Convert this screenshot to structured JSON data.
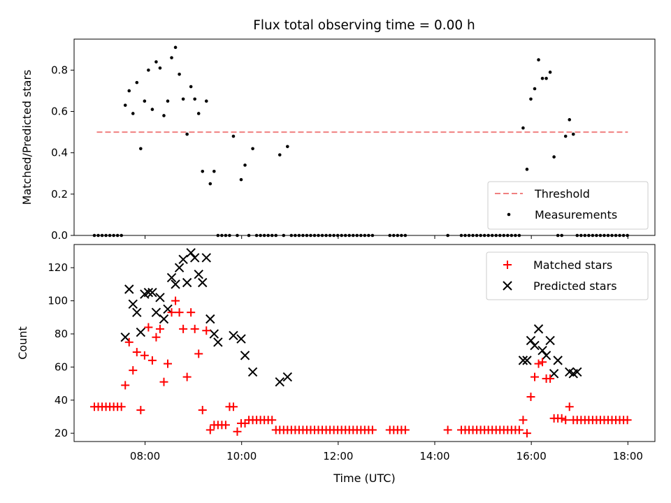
{
  "chart_data": [
    {
      "type": "scatter",
      "title": "Flux total observing time = 0.00 h",
      "xlabel": "",
      "ylabel": "Matched/Predicted stars",
      "xlim": [
        6.53,
        18.56
      ],
      "ylim": [
        0.0,
        0.95
      ],
      "x_tick_values": [
        8,
        10,
        12,
        14,
        16,
        18
      ],
      "y_ticks": [
        "0.0",
        "0.2",
        "0.4",
        "0.6",
        "0.8"
      ],
      "y_tick_values": [
        0.0,
        0.2,
        0.4,
        0.6,
        0.8
      ],
      "grid": false,
      "legend_position": "lower-right",
      "threshold": {
        "name": "Threshold",
        "value": 0.5,
        "x_range": [
          7.0,
          18.0
        ],
        "color": "#f08080"
      },
      "series": [
        {
          "name": "Measurements",
          "color": "#000000",
          "x": [
            6.95,
            7.03,
            7.11,
            7.19,
            7.27,
            7.35,
            7.43,
            7.51,
            7.59,
            7.67,
            7.75,
            7.83,
            7.91,
            7.99,
            8.07,
            8.15,
            8.23,
            8.31,
            8.39,
            8.47,
            8.55,
            8.63,
            8.71,
            8.79,
            8.87,
            8.95,
            9.03,
            9.11,
            9.19,
            9.27,
            9.35,
            9.43,
            9.51,
            9.59,
            9.67,
            9.75,
            9.83,
            9.91,
            9.99,
            10.07,
            10.15,
            10.23,
            10.31,
            10.39,
            10.47,
            10.55,
            10.63,
            10.71,
            10.79,
            10.87,
            10.95,
            11.03,
            11.11,
            11.19,
            11.27,
            11.35,
            11.43,
            11.51,
            11.59,
            11.67,
            11.75,
            11.83,
            11.91,
            11.99,
            12.07,
            12.15,
            12.23,
            12.31,
            12.39,
            12.47,
            12.55,
            12.63,
            12.71,
            13.07,
            13.15,
            13.23,
            13.31,
            13.39,
            14.27,
            14.55,
            14.63,
            14.71,
            14.79,
            14.87,
            14.95,
            15.03,
            15.11,
            15.19,
            15.27,
            15.35,
            15.43,
            15.51,
            15.59,
            15.67,
            15.75,
            15.83,
            15.91,
            15.99,
            16.07,
            16.15,
            16.23,
            16.31,
            16.39,
            16.47,
            16.55,
            16.63,
            16.71,
            16.79,
            16.87,
            16.95,
            17.03,
            17.11,
            17.19,
            17.27,
            17.35,
            17.43,
            17.51,
            17.59,
            17.67,
            17.75,
            17.83,
            17.91,
            17.99
          ],
          "y": [
            0.0,
            0.0,
            0.0,
            0.0,
            0.0,
            0.0,
            0.0,
            0.0,
            0.63,
            0.7,
            0.59,
            0.74,
            0.42,
            0.65,
            0.8,
            0.61,
            0.84,
            0.81,
            0.58,
            0.65,
            0.86,
            0.91,
            0.78,
            0.66,
            0.49,
            0.72,
            0.66,
            0.59,
            0.31,
            0.65,
            0.25,
            0.31,
            0.0,
            0.0,
            0.0,
            0.0,
            0.48,
            0.0,
            0.27,
            0.34,
            0.0,
            0.42,
            0.0,
            0.0,
            0.0,
            0.0,
            0.0,
            0.0,
            0.39,
            0.0,
            0.43,
            0.0,
            0.0,
            0.0,
            0.0,
            0.0,
            0.0,
            0.0,
            0.0,
            0.0,
            0.0,
            0.0,
            0.0,
            0.0,
            0.0,
            0.0,
            0.0,
            0.0,
            0.0,
            0.0,
            0.0,
            0.0,
            0.0,
            0.0,
            0.0,
            0.0,
            0.0,
            0.0,
            0.0,
            0.0,
            0.0,
            0.0,
            0.0,
            0.0,
            0.0,
            0.0,
            0.0,
            0.0,
            0.0,
            0.0,
            0.0,
            0.0,
            0.0,
            0.0,
            0.0,
            0.52,
            0.32,
            0.66,
            0.71,
            0.85,
            0.76,
            0.76,
            0.79,
            0.38,
            0.0,
            0.0,
            0.48,
            0.56,
            0.49,
            0.0,
            0.0,
            0.0,
            0.0,
            0.0,
            0.0,
            0.0,
            0.0,
            0.0,
            0.0,
            0.0,
            0.0,
            0.0,
            0.0
          ]
        }
      ]
    },
    {
      "type": "scatter",
      "title": "",
      "xlabel": "Time (UTC)",
      "ylabel": "Count",
      "xlim": [
        6.53,
        18.56
      ],
      "ylim": [
        15,
        134
      ],
      "x_ticks": [
        "08:00",
        "10:00",
        "12:00",
        "14:00",
        "16:00",
        "18:00"
      ],
      "x_tick_values": [
        8,
        10,
        12,
        14,
        16,
        18
      ],
      "y_ticks": [
        "20",
        "40",
        "60",
        "80",
        "100",
        "120"
      ],
      "y_tick_values": [
        20,
        40,
        60,
        80,
        100,
        120
      ],
      "grid": false,
      "legend_position": "upper-right",
      "series": [
        {
          "name": "Matched stars",
          "marker": "plus",
          "color": "#ff0000",
          "x": [
            6.95,
            7.03,
            7.11,
            7.19,
            7.27,
            7.35,
            7.43,
            7.51,
            7.59,
            7.67,
            7.75,
            7.83,
            7.91,
            7.99,
            8.07,
            8.15,
            8.23,
            8.31,
            8.39,
            8.47,
            8.55,
            8.63,
            8.71,
            8.79,
            8.87,
            8.95,
            9.03,
            9.11,
            9.19,
            9.27,
            9.35,
            9.43,
            9.51,
            9.59,
            9.67,
            9.75,
            9.83,
            9.91,
            9.99,
            10.07,
            10.15,
            10.23,
            10.31,
            10.39,
            10.47,
            10.55,
            10.63,
            10.71,
            10.79,
            10.87,
            10.95,
            11.03,
            11.11,
            11.19,
            11.27,
            11.35,
            11.43,
            11.51,
            11.59,
            11.67,
            11.75,
            11.83,
            11.91,
            11.99,
            12.07,
            12.15,
            12.23,
            12.31,
            12.39,
            12.47,
            12.55,
            12.63,
            12.71,
            13.07,
            13.15,
            13.23,
            13.31,
            13.39,
            14.27,
            14.55,
            14.63,
            14.71,
            14.79,
            14.87,
            14.95,
            15.03,
            15.11,
            15.19,
            15.27,
            15.35,
            15.43,
            15.51,
            15.59,
            15.67,
            15.75,
            15.83,
            15.91,
            15.99,
            16.07,
            16.15,
            16.23,
            16.31,
            16.39,
            16.47,
            16.55,
            16.63,
            16.71,
            16.79,
            16.87,
            16.95,
            17.03,
            17.11,
            17.19,
            17.27,
            17.35,
            17.43,
            17.51,
            17.59,
            17.67,
            17.75,
            17.83,
            17.91,
            17.99
          ],
          "y": [
            36,
            36,
            36,
            36,
            36,
            36,
            36,
            36,
            49,
            75,
            58,
            69,
            34,
            67,
            84,
            64,
            78,
            83,
            51,
            62,
            93,
            100,
            93,
            83,
            54,
            93,
            83,
            68,
            34,
            82,
            22,
            25,
            25,
            25,
            25,
            36,
            36,
            21,
            26,
            26,
            28,
            28,
            28,
            28,
            28,
            28,
            28,
            22,
            22,
            22,
            22,
            22,
            22,
            22,
            22,
            22,
            22,
            22,
            22,
            22,
            22,
            22,
            22,
            22,
            22,
            22,
            22,
            22,
            22,
            22,
            22,
            22,
            22,
            22,
            22,
            22,
            22,
            22,
            22,
            22,
            22,
            22,
            22,
            22,
            22,
            22,
            22,
            22,
            22,
            22,
            22,
            22,
            22,
            22,
            22,
            28,
            20,
            42,
            54,
            62,
            63,
            53,
            53,
            29,
            29,
            29,
            28,
            36,
            28,
            28,
            28,
            28,
            28,
            28,
            28,
            28,
            28,
            28,
            28,
            28,
            28,
            28,
            28
          ]
        },
        {
          "name": "Predicted stars",
          "marker": "x",
          "color": "#000000",
          "x": [
            7.59,
            7.67,
            7.75,
            7.83,
            7.91,
            7.99,
            8.07,
            8.15,
            8.23,
            8.31,
            8.39,
            8.47,
            8.55,
            8.63,
            8.71,
            8.79,
            8.87,
            8.95,
            9.03,
            9.11,
            9.19,
            9.27,
            9.35,
            9.43,
            9.51,
            9.83,
            9.99,
            10.07,
            10.23,
            10.79,
            10.95,
            15.83,
            15.91,
            15.99,
            16.07,
            16.15,
            16.23,
            16.31,
            16.39,
            16.47,
            16.55,
            16.79,
            16.87,
            16.95
          ],
          "y": [
            78,
            107,
            98,
            93,
            81,
            104,
            105,
            105,
            93,
            102,
            89,
            95,
            114,
            110,
            120,
            125,
            111,
            129,
            126,
            116,
            111,
            126,
            89,
            80,
            75,
            79,
            77,
            67,
            57,
            51,
            54,
            64,
            64,
            76,
            73,
            83,
            70,
            67,
            76,
            56,
            64,
            57,
            56,
            57
          ]
        }
      ]
    }
  ]
}
